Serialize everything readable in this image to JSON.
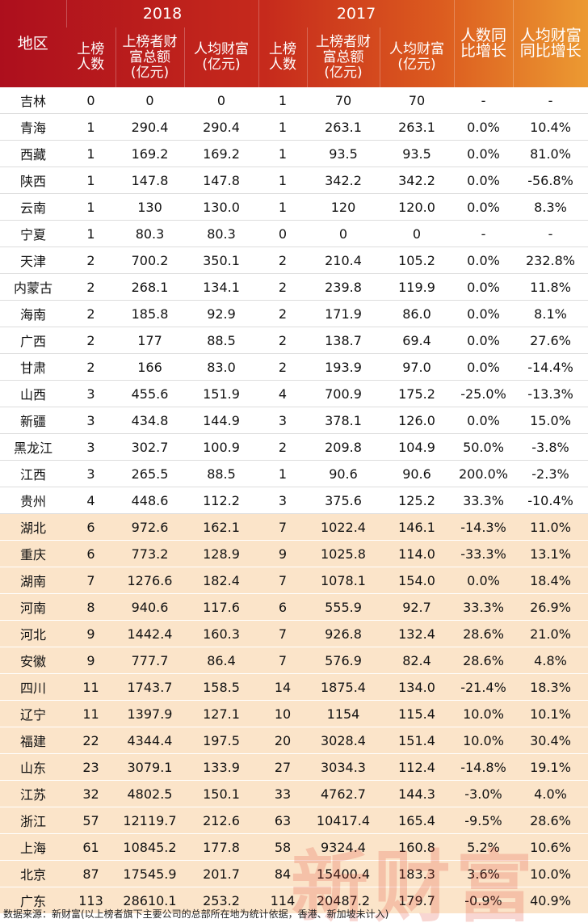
{
  "header": {
    "region": "地区",
    "groups": [
      "2018",
      "2017"
    ],
    "columns": [
      "上榜\n人数",
      "上榜者财\n富总额\n(亿元)",
      "人均财富\n(亿元)",
      "上榜\n人数",
      "上榜者财\n富总额\n(亿元)",
      "人均财富\n(亿元)"
    ],
    "growth": [
      "人数同\n比增长",
      "人均财富\n同比增长"
    ]
  },
  "table": {
    "rows": [
      [
        "吉林",
        "0",
        "0",
        "0",
        "1",
        "70",
        "70",
        "-",
        "-"
      ],
      [
        "青海",
        "1",
        "290.4",
        "290.4",
        "1",
        "263.1",
        "263.1",
        "0.0%",
        "10.4%"
      ],
      [
        "西藏",
        "1",
        "169.2",
        "169.2",
        "1",
        "93.5",
        "93.5",
        "0.0%",
        "81.0%"
      ],
      [
        "陕西",
        "1",
        "147.8",
        "147.8",
        "1",
        "342.2",
        "342.2",
        "0.0%",
        "-56.8%"
      ],
      [
        "云南",
        "1",
        "130",
        "130.0",
        "1",
        "120",
        "120.0",
        "0.0%",
        "8.3%"
      ],
      [
        "宁夏",
        "1",
        "80.3",
        "80.3",
        "0",
        "0",
        "0",
        "-",
        "-"
      ],
      [
        "天津",
        "2",
        "700.2",
        "350.1",
        "2",
        "210.4",
        "105.2",
        "0.0%",
        "232.8%"
      ],
      [
        "内蒙古",
        "2",
        "268.1",
        "134.1",
        "2",
        "239.8",
        "119.9",
        "0.0%",
        "11.8%"
      ],
      [
        "海南",
        "2",
        "185.8",
        "92.9",
        "2",
        "171.9",
        "86.0",
        "0.0%",
        "8.1%"
      ],
      [
        "广西",
        "2",
        "177",
        "88.5",
        "2",
        "138.7",
        "69.4",
        "0.0%",
        "27.6%"
      ],
      [
        "甘肃",
        "2",
        "166",
        "83.0",
        "2",
        "193.9",
        "97.0",
        "0.0%",
        "-14.4%"
      ],
      [
        "山西",
        "3",
        "455.6",
        "151.9",
        "4",
        "700.9",
        "175.2",
        "-25.0%",
        "-13.3%"
      ],
      [
        "新疆",
        "3",
        "434.8",
        "144.9",
        "3",
        "378.1",
        "126.0",
        "0.0%",
        "15.0%"
      ],
      [
        "黑龙江",
        "3",
        "302.7",
        "100.9",
        "2",
        "209.8",
        "104.9",
        "50.0%",
        "-3.8%"
      ],
      [
        "江西",
        "3",
        "265.5",
        "88.5",
        "1",
        "90.6",
        "90.6",
        "200.0%",
        "-2.3%"
      ],
      [
        "贵州",
        "4",
        "448.6",
        "112.2",
        "3",
        "375.6",
        "125.2",
        "33.3%",
        "-10.4%"
      ],
      [
        "湖北",
        "6",
        "972.6",
        "162.1",
        "7",
        "1022.4",
        "146.1",
        "-14.3%",
        "11.0%"
      ],
      [
        "重庆",
        "6",
        "773.2",
        "128.9",
        "9",
        "1025.8",
        "114.0",
        "-33.3%",
        "13.1%"
      ],
      [
        "湖南",
        "7",
        "1276.6",
        "182.4",
        "7",
        "1078.1",
        "154.0",
        "0.0%",
        "18.4%"
      ],
      [
        "河南",
        "8",
        "940.6",
        "117.6",
        "6",
        "555.9",
        "92.7",
        "33.3%",
        "26.9%"
      ],
      [
        "河北",
        "9",
        "1442.4",
        "160.3",
        "7",
        "926.8",
        "132.4",
        "28.6%",
        "21.0%"
      ],
      [
        "安徽",
        "9",
        "777.7",
        "86.4",
        "7",
        "576.9",
        "82.4",
        "28.6%",
        "4.8%"
      ],
      [
        "四川",
        "11",
        "1743.7",
        "158.5",
        "14",
        "1875.4",
        "134.0",
        "-21.4%",
        "18.3%"
      ],
      [
        "辽宁",
        "11",
        "1397.9",
        "127.1",
        "10",
        "1154",
        "115.4",
        "10.0%",
        "10.1%"
      ],
      [
        "福建",
        "22",
        "4344.4",
        "197.5",
        "20",
        "3028.4",
        "151.4",
        "10.0%",
        "30.4%"
      ],
      [
        "山东",
        "23",
        "3079.1",
        "133.9",
        "27",
        "3034.3",
        "112.4",
        "-14.8%",
        "19.1%"
      ],
      [
        "江苏",
        "32",
        "4802.5",
        "150.1",
        "33",
        "4762.7",
        "144.3",
        "-3.0%",
        "4.0%"
      ],
      [
        "浙江",
        "57",
        "12119.7",
        "212.6",
        "63",
        "10417.4",
        "165.4",
        "-9.5%",
        "28.6%"
      ],
      [
        "上海",
        "61",
        "10845.2",
        "177.8",
        "58",
        "9324.4",
        "160.8",
        "5.2%",
        "10.6%"
      ],
      [
        "北京",
        "87",
        "17545.9",
        "201.7",
        "84",
        "15400.4",
        "183.3",
        "3.6%",
        "10.0%"
      ],
      [
        "广东",
        "113",
        "28610.1",
        "253.2",
        "114",
        "20487.2",
        "179.7",
        "-0.9%",
        "40.9%"
      ]
    ]
  },
  "watermark": "新财富",
  "footer": "数据来源：新财富(以上榜者旗下主要公司的总部所在地为统计依据，香港、新加坡未计入)"
}
